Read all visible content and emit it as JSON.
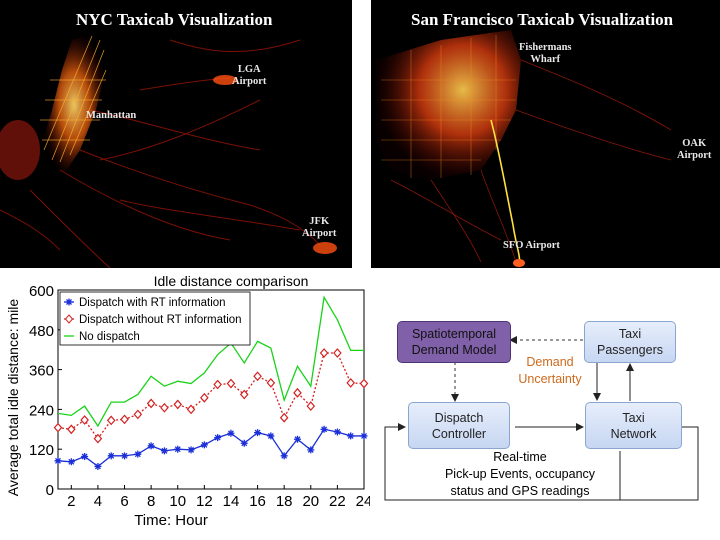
{
  "nyc_map": {
    "title": "NYC Taxicab Visualization",
    "labels": {
      "manhattan": "Manhattan",
      "lga": "LGA\nAirport",
      "jfk": "JFK\nAirport"
    }
  },
  "sf_map": {
    "title": "San Francisco Taxicab Visualization",
    "labels": {
      "fishermans": "Fishermans\nWharf",
      "oak": "OAK\nAirport",
      "sfo": "SFO Airport"
    }
  },
  "chart_data": {
    "type": "line",
    "title": "Idle distance comparison",
    "xlabel": "Time: Hour",
    "ylabel": "Average total idle distance: mile",
    "xlim": [
      1,
      24
    ],
    "ylim": [
      0,
      600
    ],
    "xticks": [
      2,
      4,
      6,
      8,
      10,
      12,
      14,
      16,
      18,
      20,
      22,
      24
    ],
    "yticks": [
      0,
      120,
      240,
      360,
      480,
      600
    ],
    "x": [
      1,
      2,
      3,
      4,
      5,
      6,
      7,
      8,
      9,
      10,
      11,
      12,
      13,
      14,
      15,
      16,
      17,
      18,
      19,
      20,
      21,
      22,
      23,
      24
    ],
    "series": [
      {
        "name": "Dispatch with RT information",
        "color": "#1a2fd8",
        "marker": "star",
        "dash": "solid",
        "values": [
          85,
          82,
          98,
          68,
          100,
          100,
          105,
          130,
          115,
          120,
          118,
          133,
          155,
          168,
          138,
          170,
          160,
          100,
          150,
          118,
          180,
          172,
          160,
          160
        ]
      },
      {
        "name": "Dispatch without RT information",
        "color": "#d42020",
        "marker": "diamond",
        "dash": "dotted",
        "values": [
          185,
          180,
          208,
          152,
          207,
          210,
          225,
          258,
          245,
          255,
          240,
          275,
          315,
          318,
          285,
          340,
          320,
          215,
          290,
          250,
          410,
          410,
          320,
          318
        ]
      },
      {
        "name": "No dispatch",
        "color": "#19d319",
        "marker": "none",
        "dash": "solid",
        "values": [
          228,
          222,
          250,
          190,
          262,
          262,
          285,
          340,
          310,
          325,
          318,
          350,
          405,
          440,
          380,
          445,
          425,
          268,
          370,
          310,
          578,
          510,
          418,
          418
        ]
      }
    ],
    "legend_position": "top-left",
    "grid": false
  },
  "diagram": {
    "spatio": "Spatiotemporal\nDemand Model",
    "passengers": "Taxi\nPassengers",
    "uncertainty": "Demand\nUncertainty",
    "controller": "Dispatch\nController",
    "network": "Taxi\nNetwork",
    "realtime": "Real-time\nPick-up Events, occupancy\nstatus and GPS readings",
    "colors": {
      "uncertainty_text": "#cf6a1d",
      "model_box": "#8060a8",
      "box_blue": "#c6d6f2"
    }
  }
}
